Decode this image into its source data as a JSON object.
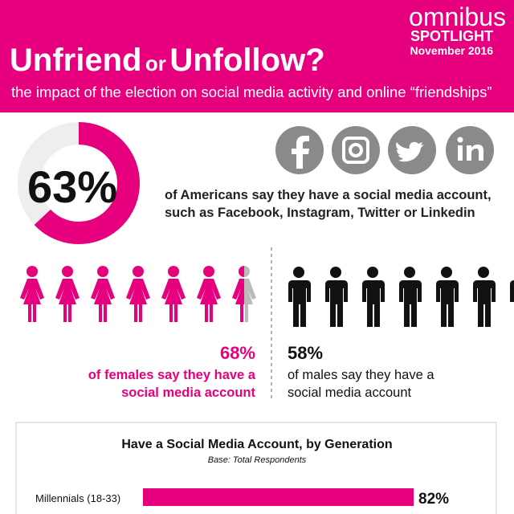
{
  "header": {
    "brand": "omnibus",
    "spotlight": "SPOTLIGHT",
    "date": "November 2016",
    "title_part1": "Unfriend",
    "title_or": "or",
    "title_part2": "Unfollow?",
    "subtitle": "the impact of the election on social media activity and online “friendships”"
  },
  "overall": {
    "value": 63,
    "value_label": "63%",
    "text_line1": "of Americans say they have a social media account,",
    "text_line2": "such as Facebook, Instagram, Twitter or Linkedin"
  },
  "females": {
    "value": 68,
    "value_label": "68%",
    "text_line1": "of females say they have a",
    "text_line2": "social media account"
  },
  "males": {
    "value": 58,
    "value_label": "58%",
    "text_line1": "of males say they have a",
    "text_line2": "social media account"
  },
  "chart_data": {
    "type": "bar",
    "title": "Have a Social Media Account, by Generation",
    "subtitle": "Base:  Total Respondents",
    "categories": [
      "Millennials (18-33)"
    ],
    "values": [
      82
    ],
    "value_labels": [
      "82%"
    ],
    "color": "#e6007e",
    "xlim": [
      0,
      100
    ]
  }
}
